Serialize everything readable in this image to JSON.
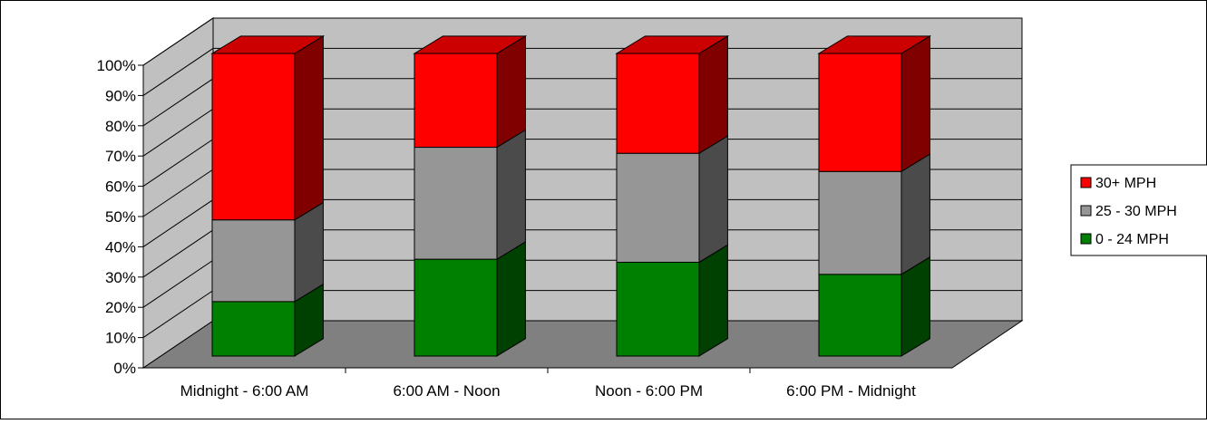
{
  "chart_data": {
    "type": "bar",
    "stacked": true,
    "percent_stacked": true,
    "three_d": true,
    "title": "",
    "xlabel": "",
    "ylabel": "",
    "categories": [
      "Midnight - 6:00 AM",
      "6:00 AM - Noon",
      "Noon - 6:00 PM",
      "6:00 PM - Midnight"
    ],
    "series": [
      {
        "name": "0 - 24 MPH",
        "color": "#008000",
        "values": [
          18,
          32,
          31,
          27
        ]
      },
      {
        "name": "25 - 30 MPH",
        "color": "#969696",
        "values": [
          27,
          37,
          36,
          34
        ]
      },
      {
        "name": "30+ MPH",
        "color": "#ff0000",
        "values": [
          55,
          31,
          33,
          39
        ]
      }
    ],
    "ylim": [
      0,
      100
    ],
    "yticks": [
      "0%",
      "10%",
      "20%",
      "30%",
      "40%",
      "50%",
      "60%",
      "70%",
      "80%",
      "90%",
      "100%"
    ],
    "grid": true,
    "legend_position": "right"
  }
}
